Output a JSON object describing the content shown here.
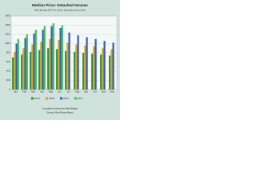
{
  "chart_data": {
    "type": "bar",
    "title": "Median Price: Detached Houses",
    "subtitle": "Data through 2017 by month, including year-to-date",
    "footer": [
      "Compiled by Agents for Real Estate",
      "Source: Real Estate Board"
    ],
    "categories": [
      "Jan",
      "Feb",
      "Mar",
      "Apr",
      "May",
      "Jun",
      "Jul",
      "Aug",
      "Sep",
      "Oct",
      "Nov",
      "Dec"
    ],
    "series": [
      {
        "name": "2014",
        "color": "#2f8f3a",
        "values": [
          700,
          760,
          820,
          860,
          900,
          880,
          840,
          820,
          800,
          780,
          760,
          740
        ]
      },
      {
        "name": "2015",
        "color": "#d8a321",
        "values": [
          820,
          900,
          980,
          1040,
          1100,
          1080,
          1020,
          980,
          960,
          940,
          900,
          880
        ]
      },
      {
        "name": "2016",
        "color": "#2d5fb8",
        "values": [
          1000,
          1120,
          1220,
          1300,
          1380,
          1340,
          1240,
          1180,
          1140,
          1100,
          1060,
          1020
        ]
      },
      {
        "name": "2017",
        "color": "#3fbf4f",
        "values": [
          1100,
          1200,
          1300,
          1380,
          1440,
          1400,
          null,
          null,
          null,
          null,
          null,
          null
        ]
      }
    ],
    "ylim": [
      0,
      1600
    ],
    "yticks": [
      0,
      200,
      400,
      600,
      800,
      1000,
      1200,
      1400,
      1600
    ],
    "grid": true,
    "legend": "bottom"
  }
}
